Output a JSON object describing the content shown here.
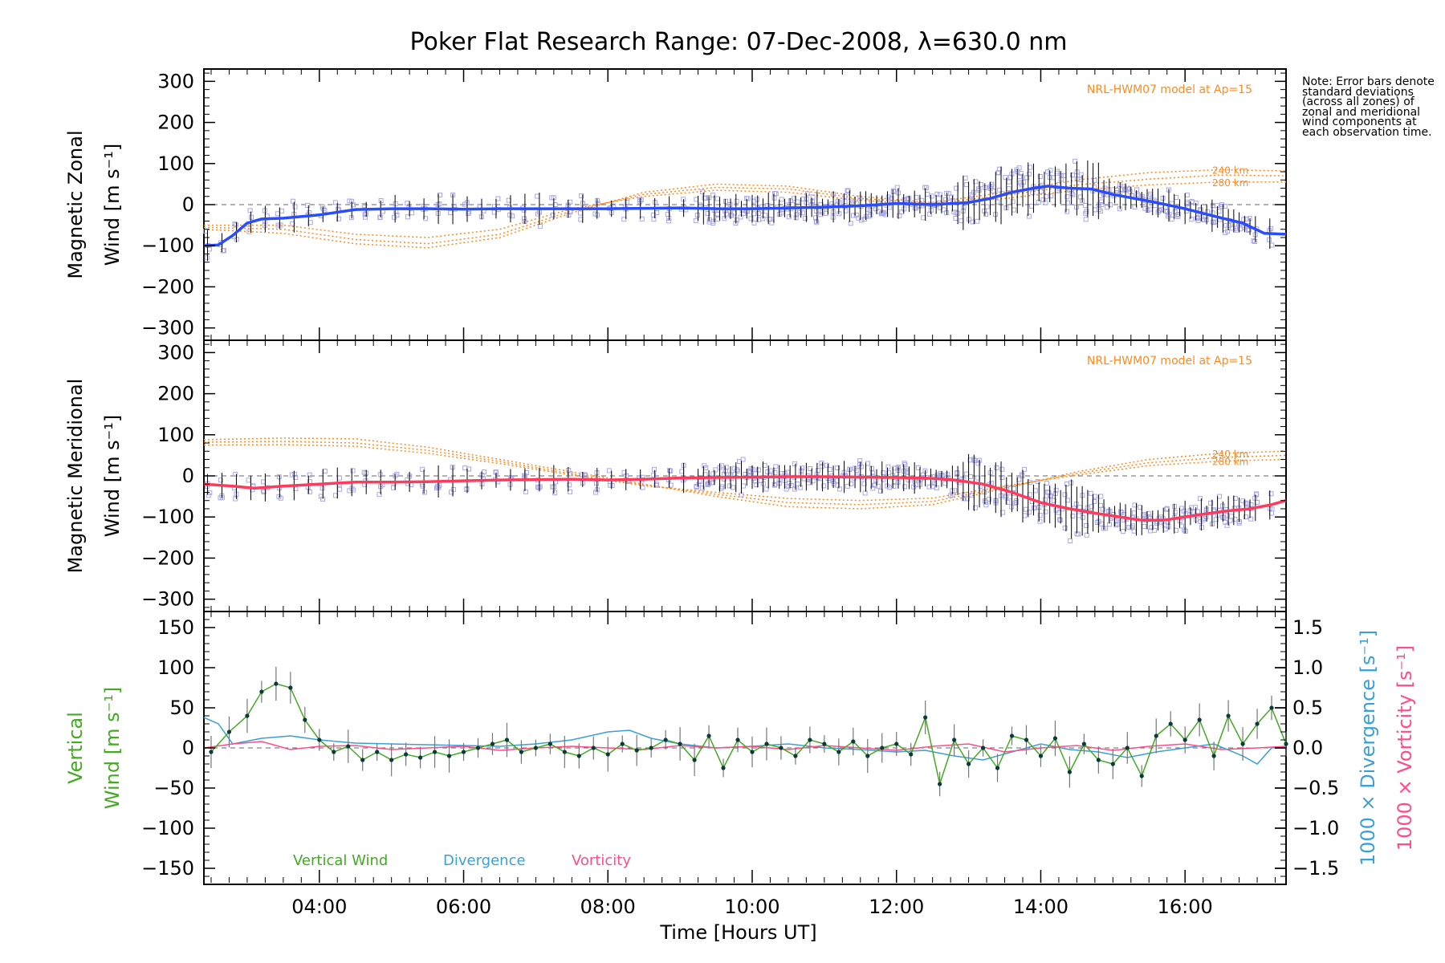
{
  "figure": {
    "title": "Poker Flat Research Range: 07-Dec-2008, λ=630.0 nm",
    "note": "Note: Error bars denote standard deviations (across all zones) of zonal and meridional wind components at each observation time.",
    "x_label": "Time [Hours UT]",
    "x_ticks": [
      "04:00",
      "06:00",
      "08:00",
      "10:00",
      "12:00",
      "14:00",
      "16:00"
    ],
    "colors": {
      "zonal_mean": "#2a4cff",
      "meridional_mean": "#ff3a5c",
      "model": "#ff8a1e",
      "zones": "#a8a8e8",
      "divergence_line": "#3aa0d6",
      "vorticity_line": "#ff4d8a",
      "vertical": "#44aa22",
      "errorbar": "#000000"
    }
  },
  "chart_data": [
    {
      "type": "line",
      "panel": "zonal",
      "ylabel_line1": "Magnetic Zonal",
      "ylabel_line2": "Wind [m s⁻¹]",
      "y_ticks": [
        "300",
        "200",
        "100",
        "0",
        "−100",
        "−200",
        "−300"
      ],
      "ylim": [
        -330,
        330
      ],
      "xlim": [
        2.4,
        17.4
      ],
      "model_label": "NRL-HWM07 model at Ap=15",
      "model_alt_labels": [
        "240 km",
        "280 km"
      ],
      "series": [
        {
          "role": "mean",
          "x": [
            2.4,
            2.6,
            2.8,
            3.0,
            3.2,
            3.5,
            4.0,
            4.5,
            5.0,
            5.5,
            6.0,
            6.5,
            7.0,
            7.5,
            8.0,
            8.5,
            9.0,
            9.5,
            10.0,
            10.5,
            11.0,
            11.5,
            12.0,
            12.5,
            13.0,
            13.3,
            13.6,
            13.9,
            14.1,
            14.4,
            14.7,
            15.0,
            15.3,
            15.6,
            16.0,
            16.4,
            16.8,
            17.1,
            17.4
          ],
          "y": [
            -100,
            -98,
            -75,
            -45,
            -35,
            -33,
            -25,
            -12,
            -10,
            -10,
            -11,
            -10,
            -10,
            -10,
            -10,
            -9,
            -8,
            -10,
            -10,
            -8,
            -6,
            -3,
            3,
            0,
            5,
            15,
            30,
            40,
            45,
            40,
            38,
            25,
            15,
            5,
            -10,
            -28,
            -45,
            -70,
            -72
          ]
        },
        {
          "role": "model",
          "x": [
            2.4,
            3.5,
            4.5,
            5.5,
            6.5,
            7.5,
            8.5,
            9.5,
            10.5,
            11.5,
            12.5,
            13.5,
            14.5,
            15.5,
            16.5,
            17.4
          ],
          "y": [
            -60,
            -70,
            -95,
            -105,
            -80,
            -20,
            30,
            50,
            45,
            20,
            5,
            30,
            60,
            78,
            85,
            82
          ]
        },
        {
          "role": "model",
          "x": [
            2.4,
            3.5,
            4.5,
            5.5,
            6.5,
            7.5,
            8.5,
            9.5,
            10.5,
            11.5,
            12.5,
            13.5,
            14.5,
            15.5,
            16.5,
            17.4
          ],
          "y": [
            -55,
            -60,
            -85,
            -95,
            -72,
            -15,
            25,
            42,
            38,
            15,
            3,
            22,
            48,
            62,
            72,
            70
          ]
        },
        {
          "role": "model",
          "x": [
            2.4,
            3.5,
            4.5,
            5.5,
            6.5,
            7.5,
            8.5,
            9.5,
            10.5,
            11.5,
            12.5,
            13.5,
            14.5,
            15.5,
            16.5,
            17.4
          ],
          "y": [
            -50,
            -50,
            -72,
            -80,
            -60,
            -10,
            20,
            35,
            30,
            10,
            0,
            15,
            35,
            48,
            55,
            55
          ]
        }
      ]
    },
    {
      "type": "line",
      "panel": "meridional",
      "ylabel_line1": "Magnetic Meridional",
      "ylabel_line2": "Wind [m s⁻¹]",
      "y_ticks": [
        "300",
        "200",
        "100",
        "0",
        "−100",
        "−200",
        "−300"
      ],
      "ylim": [
        -330,
        330
      ],
      "xlim": [
        2.4,
        17.4
      ],
      "model_label": "NRL-HWM07 model at Ap=15",
      "model_alt_labels": [
        "240 km",
        "280 km"
      ],
      "series": [
        {
          "role": "mean",
          "x": [
            2.4,
            2.8,
            3.1,
            3.5,
            4.0,
            4.5,
            5.0,
            5.5,
            6.0,
            6.5,
            7.0,
            7.5,
            8.0,
            8.5,
            9.0,
            9.5,
            10.0,
            10.5,
            11.0,
            11.5,
            12.0,
            12.5,
            12.8,
            13.2,
            13.6,
            14.0,
            14.4,
            14.8,
            15.1,
            15.4,
            15.7,
            16.0,
            16.3,
            16.6,
            16.9,
            17.2,
            17.4
          ],
          "y": [
            -20,
            -25,
            -30,
            -25,
            -20,
            -15,
            -15,
            -14,
            -12,
            -10,
            -9,
            -8,
            -10,
            -8,
            -5,
            -4,
            -3,
            -2,
            -2,
            -3,
            -4,
            -6,
            -10,
            -20,
            -40,
            -65,
            -80,
            -92,
            -100,
            -108,
            -108,
            -100,
            -92,
            -85,
            -80,
            -70,
            -60
          ]
        },
        {
          "role": "model",
          "x": [
            2.4,
            3.5,
            4.5,
            5.5,
            6.5,
            7.5,
            8.5,
            9.5,
            10.5,
            11.5,
            12.5,
            13.5,
            14.5,
            15.5,
            16.5,
            17.4
          ],
          "y": [
            88,
            92,
            90,
            70,
            40,
            10,
            -20,
            -50,
            -75,
            -80,
            -70,
            -30,
            10,
            40,
            55,
            60
          ]
        },
        {
          "role": "model",
          "x": [
            2.4,
            3.5,
            4.5,
            5.5,
            6.5,
            7.5,
            8.5,
            9.5,
            10.5,
            11.5,
            12.5,
            13.5,
            14.5,
            15.5,
            16.5,
            17.4
          ],
          "y": [
            82,
            84,
            80,
            62,
            35,
            5,
            -22,
            -45,
            -65,
            -70,
            -62,
            -28,
            6,
            32,
            45,
            50
          ]
        },
        {
          "role": "model",
          "x": [
            2.4,
            3.5,
            4.5,
            5.5,
            6.5,
            7.5,
            8.5,
            9.5,
            10.5,
            11.5,
            12.5,
            13.5,
            14.5,
            15.5,
            16.5,
            17.4
          ],
          "y": [
            75,
            76,
            72,
            55,
            30,
            2,
            -24,
            -40,
            -55,
            -60,
            -54,
            -25,
            2,
            25,
            36,
            40
          ]
        }
      ]
    },
    {
      "type": "line",
      "panel": "vertical",
      "ylabel_line1": "Vertical",
      "ylabel_line2": "Wind [m s⁻¹]",
      "y_ticks": [
        "150",
        "100",
        "50",
        "0",
        "−50",
        "−100",
        "−150"
      ],
      "ylim": [
        -170,
        170
      ],
      "right_ylim": [
        -1.7,
        1.7
      ],
      "right_ticks": [
        "1.5",
        "1.0",
        "0.5",
        "0.0",
        "−0.5",
        "−1.0",
        "−1.5"
      ],
      "right_label_div": "1000 × Divergence [s⁻¹]",
      "right_label_vort": "1000 × Vorticity [s⁻¹]",
      "legend": [
        "Vertical Wind",
        "Divergence",
        "Vorticity"
      ],
      "series": [
        {
          "name": "Vertical Wind",
          "x": [
            2.5,
            2.75,
            3.0,
            3.2,
            3.4,
            3.6,
            3.8,
            4.0,
            4.2,
            4.4,
            4.6,
            4.8,
            5.0,
            5.2,
            5.4,
            5.6,
            5.8,
            6.0,
            6.2,
            6.4,
            6.6,
            6.8,
            7.0,
            7.2,
            7.4,
            7.6,
            7.8,
            8.0,
            8.2,
            8.4,
            8.6,
            8.8,
            9.0,
            9.2,
            9.4,
            9.6,
            9.8,
            10.0,
            10.2,
            10.4,
            10.6,
            10.8,
            11.0,
            11.2,
            11.4,
            11.6,
            11.8,
            12.0,
            12.2,
            12.4,
            12.6,
            12.8,
            13.0,
            13.2,
            13.4,
            13.6,
            13.8,
            14.0,
            14.2,
            14.4,
            14.6,
            14.8,
            15.0,
            15.2,
            15.4,
            15.6,
            15.8,
            16.0,
            16.2,
            16.4,
            16.6,
            16.8,
            17.0,
            17.2,
            17.4
          ],
          "y": [
            -5,
            20,
            40,
            70,
            80,
            75,
            35,
            10,
            -5,
            2,
            -15,
            -5,
            -15,
            -8,
            -12,
            -5,
            -10,
            -5,
            0,
            5,
            10,
            -5,
            0,
            5,
            -5,
            -10,
            0,
            -8,
            5,
            -3,
            0,
            10,
            5,
            -15,
            15,
            -25,
            10,
            -5,
            5,
            0,
            -10,
            10,
            5,
            -5,
            8,
            -10,
            0,
            5,
            -8,
            38,
            -45,
            10,
            -20,
            0,
            -25,
            15,
            10,
            -10,
            12,
            -30,
            5,
            -15,
            -20,
            0,
            -35,
            15,
            30,
            10,
            35,
            -10,
            40,
            5,
            30,
            50,
            5
          ]
        },
        {
          "name": "Divergence",
          "x": [
            2.4,
            2.6,
            2.8,
            3.2,
            3.6,
            4.0,
            4.5,
            5.0,
            5.5,
            6.0,
            6.5,
            7.0,
            7.5,
            8.0,
            8.3,
            8.6,
            9.0,
            9.5,
            10.0,
            10.5,
            11.0,
            11.5,
            12.0,
            12.4,
            12.8,
            13.2,
            13.6,
            14.0,
            14.4,
            14.8,
            15.2,
            15.6,
            16.0,
            16.4,
            16.8,
            17.0,
            17.2,
            17.4
          ],
          "y": [
            0.38,
            0.3,
            0.05,
            0.12,
            0.15,
            0.1,
            0.06,
            0.05,
            0.04,
            0.03,
            0.02,
            0.05,
            0.1,
            0.2,
            0.22,
            0.12,
            0.05,
            0.0,
            0.02,
            0.05,
            0.0,
            -0.02,
            -0.05,
            -0.03,
            -0.1,
            -0.15,
            -0.05,
            0.05,
            -0.02,
            -0.05,
            -0.12,
            -0.05,
            0.0,
            0.05,
            -0.1,
            -0.2,
            0.0,
            0.02
          ]
        },
        {
          "name": "Vorticity",
          "x": [
            2.4,
            2.8,
            3.2,
            3.6,
            4.0,
            4.5,
            5.0,
            5.5,
            6.0,
            6.5,
            7.0,
            7.5,
            8.0,
            8.5,
            9.0,
            9.5,
            10.0,
            10.5,
            11.0,
            11.5,
            12.0,
            12.5,
            13.0,
            13.5,
            14.0,
            14.5,
            15.0,
            15.5,
            16.0,
            16.5,
            17.0,
            17.4
          ],
          "y": [
            0.0,
            0.05,
            0.08,
            -0.02,
            0.02,
            0.03,
            -0.02,
            0.0,
            0.02,
            -0.03,
            0.0,
            0.02,
            0.0,
            -0.02,
            0.03,
            0.0,
            0.02,
            -0.02,
            0.03,
            0.0,
            -0.03,
            0.02,
            0.05,
            -0.05,
            0.0,
            0.03,
            -0.03,
            0.02,
            0.05,
            -0.02,
            0.0,
            0.02
          ]
        }
      ]
    }
  ]
}
